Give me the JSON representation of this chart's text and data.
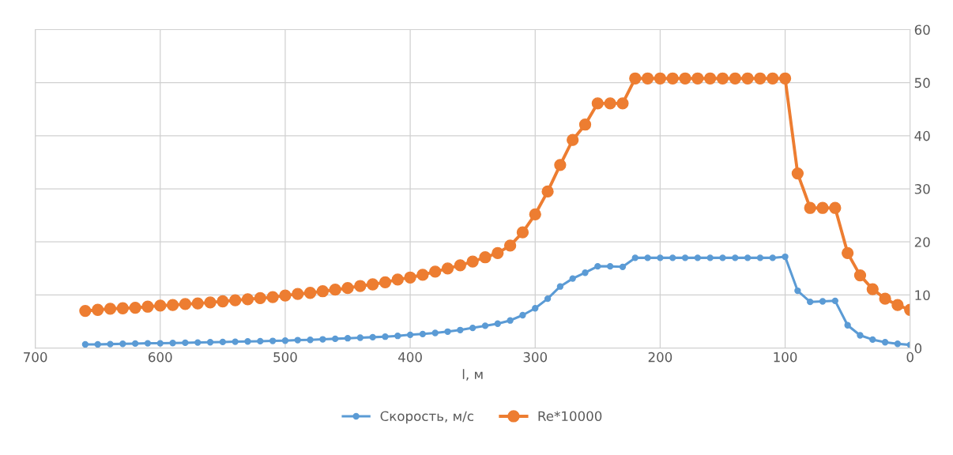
{
  "chart_data": {
    "type": "line",
    "xlabel": "l, м",
    "x": [
      660,
      650,
      640,
      630,
      620,
      610,
      600,
      590,
      580,
      570,
      560,
      550,
      540,
      530,
      520,
      510,
      500,
      490,
      480,
      470,
      460,
      450,
      440,
      430,
      420,
      410,
      400,
      390,
      380,
      370,
      360,
      350,
      340,
      330,
      320,
      310,
      300,
      290,
      280,
      270,
      260,
      250,
      240,
      230,
      220,
      210,
      200,
      190,
      180,
      170,
      160,
      150,
      140,
      130,
      120,
      110,
      100,
      90,
      80,
      70,
      60,
      50,
      40,
      30,
      20,
      10,
      0
    ],
    "series": [
      {
        "name": "Скорость, м/с",
        "color": "#5b9bd5",
        "values": [
          0.7,
          0.7,
          0.75,
          0.8,
          0.85,
          0.9,
          0.9,
          0.95,
          1.0,
          1.05,
          1.1,
          1.15,
          1.2,
          1.25,
          1.3,
          1.35,
          1.4,
          1.5,
          1.55,
          1.65,
          1.75,
          1.85,
          1.95,
          2.05,
          2.15,
          2.3,
          2.5,
          2.65,
          2.85,
          3.1,
          3.4,
          3.8,
          4.2,
          4.6,
          5.2,
          6.2,
          7.5,
          9.3,
          11.6,
          13.1,
          14.2,
          15.4,
          15.4,
          15.3,
          17.0,
          17.0,
          17.0,
          17.0,
          17.0,
          17.0,
          17.0,
          17.0,
          17.0,
          17.0,
          17.0,
          17.0,
          17.2,
          10.8,
          8.7,
          8.8,
          8.9,
          4.3,
          2.4,
          1.6,
          1.1,
          0.8,
          0.6
        ]
      },
      {
        "name": "Re*10000",
        "color": "#ed7d31",
        "values": [
          7.0,
          7.2,
          7.4,
          7.5,
          7.6,
          7.8,
          8.0,
          8.1,
          8.3,
          8.4,
          8.6,
          8.8,
          9.0,
          9.2,
          9.4,
          9.6,
          9.9,
          10.2,
          10.4,
          10.7,
          11.0,
          11.3,
          11.7,
          12.0,
          12.4,
          12.9,
          13.3,
          13.8,
          14.4,
          15.0,
          15.6,
          16.3,
          17.1,
          17.9,
          19.3,
          21.8,
          25.2,
          29.5,
          34.5,
          39.2,
          42.1,
          46.1,
          46.1,
          46.1,
          50.8,
          50.8,
          50.8,
          50.8,
          50.8,
          50.8,
          50.8,
          50.8,
          50.8,
          50.8,
          50.8,
          50.8,
          50.8,
          32.9,
          26.4,
          26.4,
          26.4,
          17.9,
          13.7,
          11.1,
          9.3,
          8.1,
          7.2
        ]
      }
    ],
    "xlim": [
      700,
      0
    ],
    "xticks": [
      700,
      600,
      500,
      400,
      300,
      200,
      100,
      0
    ],
    "ylim": [
      0,
      60
    ],
    "yticks": [
      0,
      10,
      20,
      30,
      40,
      50,
      60
    ],
    "grid": true,
    "legend": "bottom",
    "marker": "circle",
    "line_style": "solid"
  }
}
